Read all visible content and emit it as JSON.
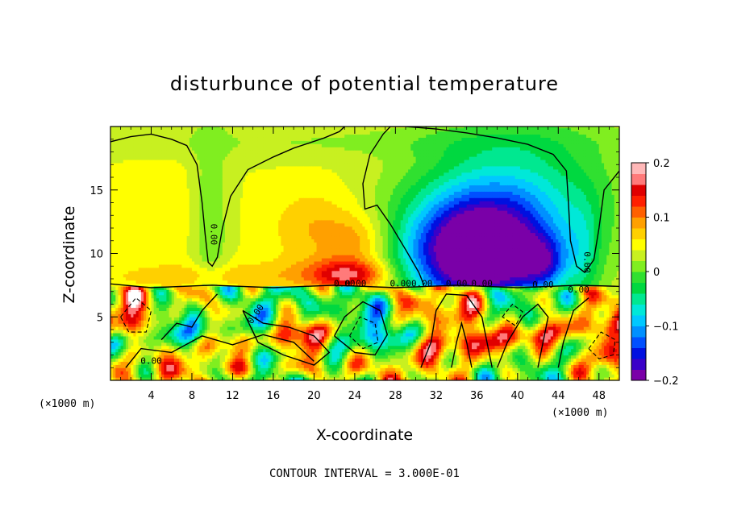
{
  "chart_data": {
    "type": "heatmap",
    "title": "disturbunce of potential temperature",
    "xlabel": "X-coordinate",
    "ylabel": "Z-coordinate",
    "x_unit_left": "(×1000 m)",
    "x_unit_right": "(×1000 m)",
    "xlim": [
      0,
      50
    ],
    "ylim": [
      0,
      20
    ],
    "x_ticks": [
      4,
      8,
      12,
      16,
      20,
      24,
      28,
      32,
      36,
      40,
      44,
      48
    ],
    "y_ticks": [
      5,
      10,
      15
    ],
    "colorbar": {
      "range": [
        -0.2,
        0.2
      ],
      "tick_values": [
        0.2,
        0.1,
        0,
        -0.1,
        -0.2
      ],
      "tick_labels": [
        "0.2",
        "0.1",
        "0",
        "−0.1",
        "−0.2"
      ],
      "colors": [
        "#7a00a8",
        "#3a00c8",
        "#0010e0",
        "#0050ff",
        "#0090ff",
        "#00c8ff",
        "#00e8d8",
        "#00e890",
        "#00d840",
        "#30e030",
        "#80ee20",
        "#c8f020",
        "#ffff00",
        "#ffd000",
        "#ffa000",
        "#ff6000",
        "#ff2000",
        "#e00000",
        "#ff7a7a",
        "#ffb8b8"
      ]
    },
    "contour_labels": [
      "0.00",
      "0.00",
      "0.00",
      "0.00",
      "0.00",
      "0.00",
      "0.00",
      "0.00",
      "0.00",
      "0.00",
      "0.00",
      "0.00"
    ],
    "footer": "CONTOUR INTERVAL = 3.000E-01"
  }
}
